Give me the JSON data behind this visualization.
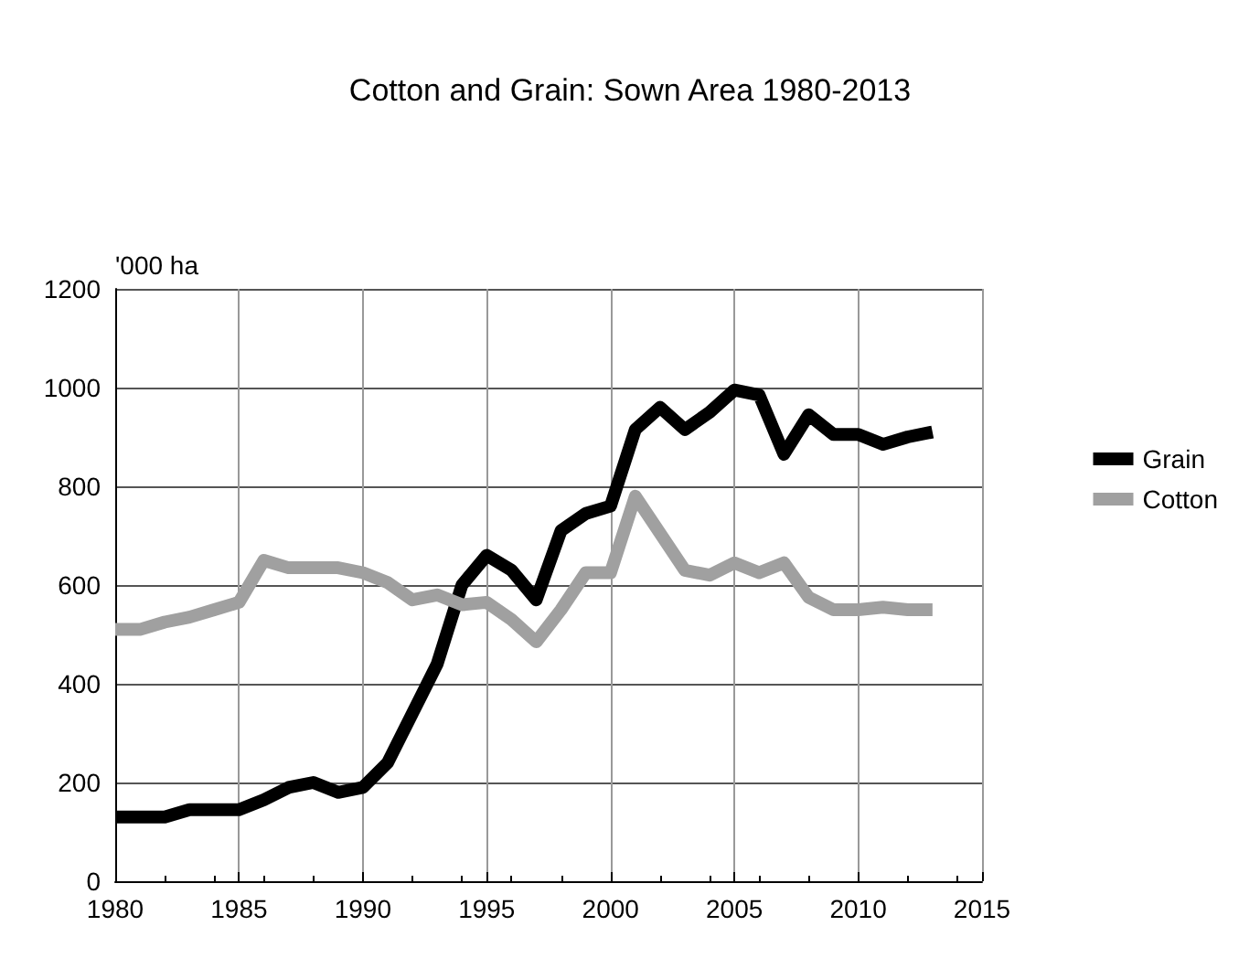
{
  "chart_data": {
    "type": "line",
    "title": "Cotton and Grain: Sown Area 1980-2013",
    "ylabel": "'000 ha",
    "x": [
      1980,
      1981,
      1982,
      1983,
      1984,
      1985,
      1986,
      1987,
      1988,
      1989,
      1990,
      1991,
      1992,
      1993,
      1994,
      1995,
      1996,
      1997,
      1998,
      1999,
      2000,
      2001,
      2002,
      2003,
      2004,
      2005,
      2006,
      2007,
      2008,
      2009,
      2010,
      2011,
      2012,
      2013
    ],
    "series": [
      {
        "name": "Grain",
        "color": "#000000",
        "values": [
          130,
          130,
          130,
          145,
          145,
          145,
          165,
          190,
          200,
          180,
          190,
          240,
          340,
          440,
          600,
          660,
          630,
          570,
          710,
          745,
          760,
          915,
          960,
          915,
          950,
          995,
          985,
          865,
          945,
          905,
          905,
          885,
          900,
          910
        ]
      },
      {
        "name": "Cotton",
        "color": "#a0a0a0",
        "values": [
          510,
          510,
          525,
          535,
          550,
          565,
          650,
          635,
          635,
          635,
          625,
          605,
          570,
          580,
          560,
          565,
          530,
          485,
          550,
          625,
          625,
          780,
          705,
          630,
          620,
          645,
          625,
          645,
          575,
          550,
          550,
          555,
          550,
          550
        ]
      }
    ],
    "xlim": [
      1980,
      2015
    ],
    "xticks": [
      1980,
      1985,
      1990,
      1995,
      2000,
      2005,
      2010,
      2015
    ],
    "ylim": [
      0,
      1200
    ],
    "yticks": [
      0,
      200,
      400,
      600,
      800,
      1000,
      1200
    ],
    "grid": true,
    "legend": "right",
    "marker": "none",
    "line_style": "solid"
  }
}
